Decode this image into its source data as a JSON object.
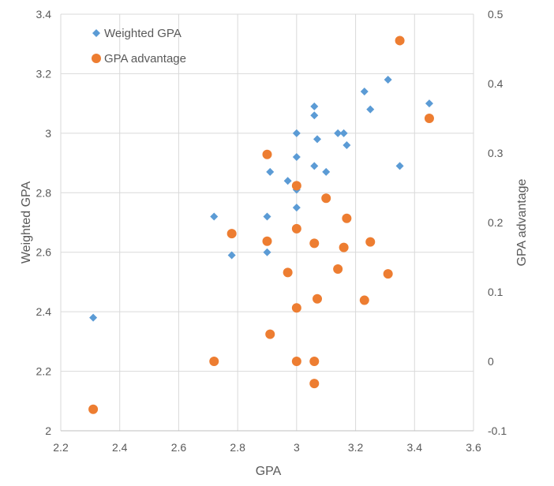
{
  "chart_data": {
    "type": "scatter",
    "title": "",
    "xlabel": "GPA",
    "ylabel_left": "Weighted GPA",
    "ylabel_right": "GPA advantage",
    "xlim": [
      2.2,
      3.6
    ],
    "ylim_left": [
      2.0,
      3.4
    ],
    "ylim_right": [
      -0.1,
      0.5
    ],
    "x_ticks": [
      "2.2",
      "2.4",
      "2.6",
      "2.8",
      "3",
      "3.2",
      "3.4",
      "3.6"
    ],
    "y_left_ticks": [
      "2",
      "2.2",
      "2.4",
      "2.6",
      "2.8",
      "3",
      "3.2",
      "3.4"
    ],
    "y_right_ticks": [
      "-0.1",
      "0",
      "0.1",
      "0.2",
      "0.3",
      "0.4",
      "0.5"
    ],
    "x_tick_values": [
      2.2,
      2.4,
      2.6,
      2.8,
      3.0,
      3.2,
      3.4,
      3.6
    ],
    "y_left_tick_values": [
      2.0,
      2.2,
      2.4,
      2.6,
      2.8,
      3.0,
      3.2,
      3.4
    ],
    "y_right_tick_values": [
      -0.1,
      0.0,
      0.1,
      0.2,
      0.3,
      0.4,
      0.5
    ],
    "grid": true,
    "legend_position": "top-left",
    "series": [
      {
        "name": "Weighted GPA",
        "axis": "left",
        "marker": "diamond",
        "color": "#5B9BD5",
        "points": [
          [
            2.31,
            2.38
          ],
          [
            2.72,
            2.72
          ],
          [
            2.78,
            2.59
          ],
          [
            2.9,
            2.72
          ],
          [
            2.9,
            2.6
          ],
          [
            2.91,
            2.87
          ],
          [
            2.97,
            2.84
          ],
          [
            3.0,
            3.0
          ],
          [
            3.0,
            2.92
          ],
          [
            3.0,
            2.81
          ],
          [
            3.0,
            2.75
          ],
          [
            3.06,
            3.09
          ],
          [
            3.06,
            3.06
          ],
          [
            3.06,
            2.89
          ],
          [
            3.07,
            2.98
          ],
          [
            3.1,
            2.87
          ],
          [
            3.14,
            3.0
          ],
          [
            3.16,
            3.0
          ],
          [
            3.17,
            2.96
          ],
          [
            3.23,
            3.14
          ],
          [
            3.25,
            3.08
          ],
          [
            3.31,
            3.18
          ],
          [
            3.35,
            2.89
          ],
          [
            3.45,
            3.1
          ]
        ]
      },
      {
        "name": "GPA advantage",
        "axis": "right",
        "marker": "circle",
        "color": "#ED7D31",
        "points": [
          [
            2.31,
            -0.069
          ],
          [
            2.72,
            0.0
          ],
          [
            2.78,
            0.184
          ],
          [
            2.9,
            0.298
          ],
          [
            2.9,
            0.173
          ],
          [
            2.91,
            0.039
          ],
          [
            2.97,
            0.128
          ],
          [
            3.0,
            0.253
          ],
          [
            3.0,
            0.191
          ],
          [
            3.0,
            0.077
          ],
          [
            3.0,
            0.0
          ],
          [
            3.06,
            0.17
          ],
          [
            3.06,
            0.0
          ],
          [
            3.06,
            -0.032
          ],
          [
            3.07,
            0.09
          ],
          [
            3.1,
            0.235
          ],
          [
            3.14,
            0.133
          ],
          [
            3.16,
            0.164
          ],
          [
            3.17,
            0.206
          ],
          [
            3.23,
            0.088
          ],
          [
            3.25,
            0.172
          ],
          [
            3.31,
            0.126
          ],
          [
            3.35,
            0.462
          ],
          [
            3.45,
            0.35
          ]
        ]
      }
    ]
  }
}
